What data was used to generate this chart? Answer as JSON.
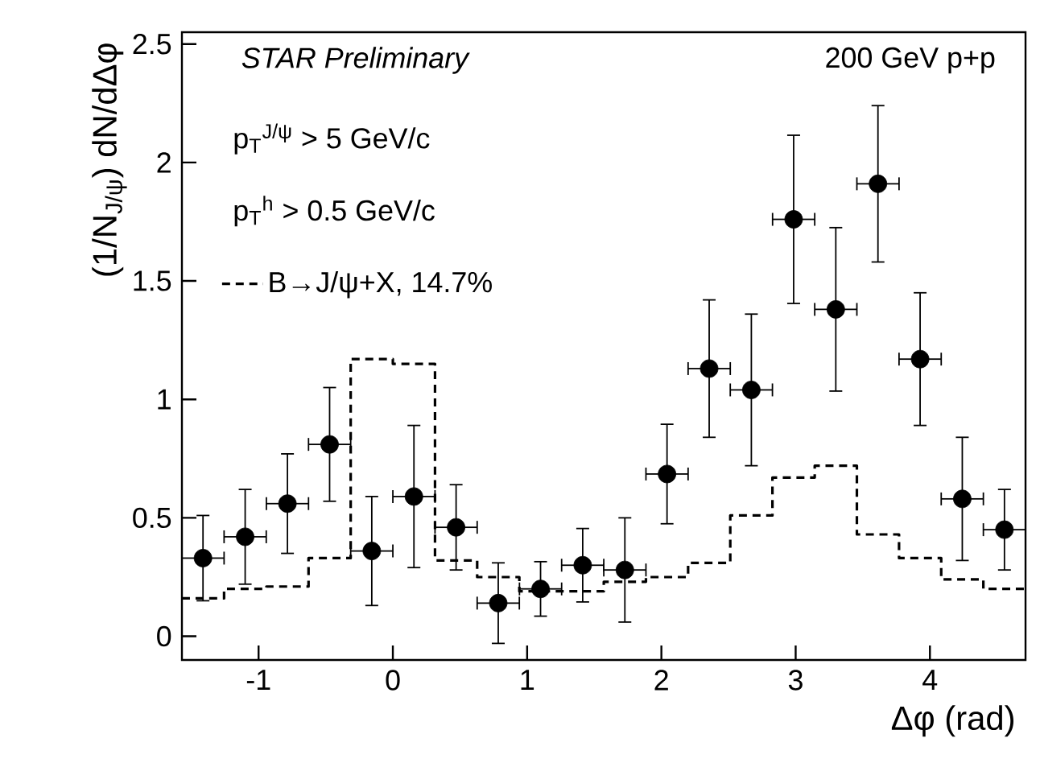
{
  "chart_data": {
    "type": "scatter",
    "xlabel": "Δφ (rad)",
    "ylabel": "(1/N$_{J/ψ}$) dN/dΔφ",
    "xlim": [
      -1.571,
      4.712
    ],
    "ylim": [
      -0.1,
      2.55
    ],
    "xticks": [
      -1,
      0,
      1,
      2,
      3,
      4
    ],
    "yticks": [
      0,
      0.5,
      1,
      1.5,
      2,
      2.5
    ],
    "legend": "top left",
    "marker": "circle",
    "annotations": [
      "STAR Preliminary",
      "200 GeV p+p",
      "p$_{T}$$^{J/ψ}$ > 5 GeV/c",
      "p$_{T}$$^{h}$ > 0.5 GeV/c"
    ],
    "series": [
      {
        "color": "#000000",
        "x": [
          -1.414,
          -1.1,
          -0.785,
          -0.471,
          -0.157,
          0.157,
          0.471,
          0.785,
          1.1,
          1.414,
          1.728,
          2.042,
          2.356,
          2.67,
          2.985,
          3.299,
          3.613,
          3.927,
          4.241,
          4.555
        ],
        "values": [
          0.33,
          0.42,
          0.56,
          0.81,
          0.36,
          0.59,
          0.46,
          0.14,
          0.2,
          0.3,
          0.28,
          0.685,
          1.13,
          1.04,
          1.76,
          1.38,
          1.91,
          1.17,
          0.58,
          0.45
        ],
        "errors": [
          0.18,
          0.2,
          0.21,
          0.24,
          0.23,
          0.3,
          0.18,
          0.17,
          0.115,
          0.155,
          0.22,
          0.21,
          0.29,
          0.32,
          0.355,
          0.345,
          0.33,
          0.28,
          0.26,
          0.17
        ],
        "xerrors": [
          0.157,
          0.157,
          0.157,
          0.157,
          0.157,
          0.157,
          0.157,
          0.157,
          0.157,
          0.157,
          0.157,
          0.157,
          0.157,
          0.157,
          0.157,
          0.157,
          0.157,
          0.157,
          0.157,
          0.157
        ]
      },
      {
        "type": "histogram",
        "name": "B→J/ψ+X, 14.7%",
        "color": "#000000",
        "line_style": "dashed",
        "bins": [
          -1.571,
          -1.257,
          -0.942,
          -0.628,
          -0.314,
          0,
          0.314,
          0.628,
          0.942,
          1.257,
          1.571,
          1.885,
          2.199,
          2.513,
          2.827,
          3.142,
          3.456,
          3.77,
          4.084,
          4.398,
          4.712
        ],
        "values": [
          0.16,
          0.2,
          0.21,
          0.33,
          1.17,
          1.15,
          0.32,
          0.25,
          0.19,
          0.19,
          0.23,
          0.25,
          0.31,
          0.51,
          0.67,
          0.72,
          0.43,
          0.33,
          0.24,
          0.2
        ]
      }
    ]
  }
}
